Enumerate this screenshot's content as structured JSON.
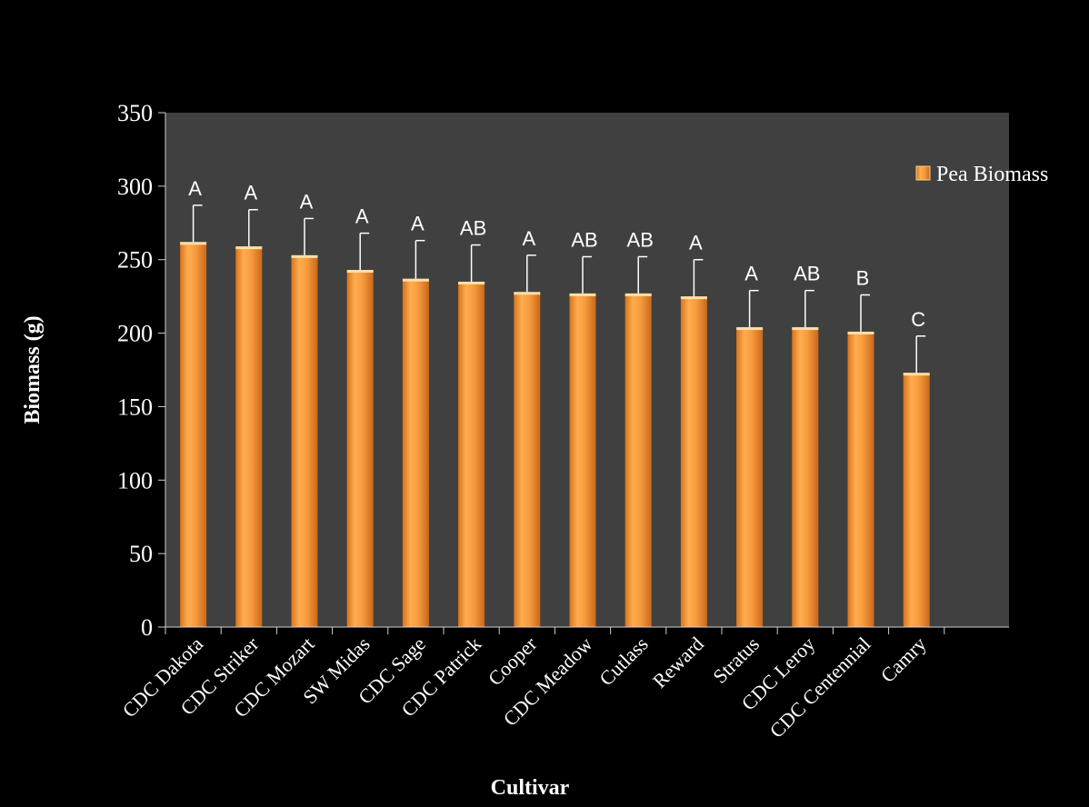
{
  "chart_data": {
    "type": "bar",
    "categories": [
      "CDC Dakota",
      "CDC Striker",
      "CDC Mozart",
      "SW Midas",
      "CDC Sage",
      "CDC Patrick",
      "Cooper",
      "CDC Meadow",
      "Cutlass",
      "Reward",
      "Stratus",
      "CDC Leroy",
      "CDC Centennial",
      "Camry"
    ],
    "series": [
      {
        "name": "Pea Biomass",
        "values": [
          262,
          259,
          253,
          243,
          237,
          235,
          228,
          227,
          227,
          225,
          204,
          204,
          201,
          173
        ],
        "error": [
          25,
          25,
          25,
          25,
          26,
          25,
          25,
          25,
          25,
          25,
          25,
          25,
          25,
          25
        ],
        "letters": [
          "A",
          "A",
          "A",
          "A",
          "A",
          "AB",
          "A",
          "AB",
          "AB",
          "A",
          "A",
          "AB",
          "B",
          "C"
        ]
      }
    ],
    "xlabel": "Cultivar",
    "ylabel": "Biomass (g)",
    "ylim": [
      0,
      350
    ],
    "yticks": [
      0,
      50,
      100,
      150,
      200,
      250,
      300,
      350
    ],
    "legend": "top-right",
    "grid": false,
    "colors": {
      "bar": "#f0902c",
      "bar_light": "#ffb85c",
      "plot_bg": "#404040",
      "page_bg": "#000000",
      "text": "#ffffff",
      "axis": "#cfcfcf"
    }
  }
}
